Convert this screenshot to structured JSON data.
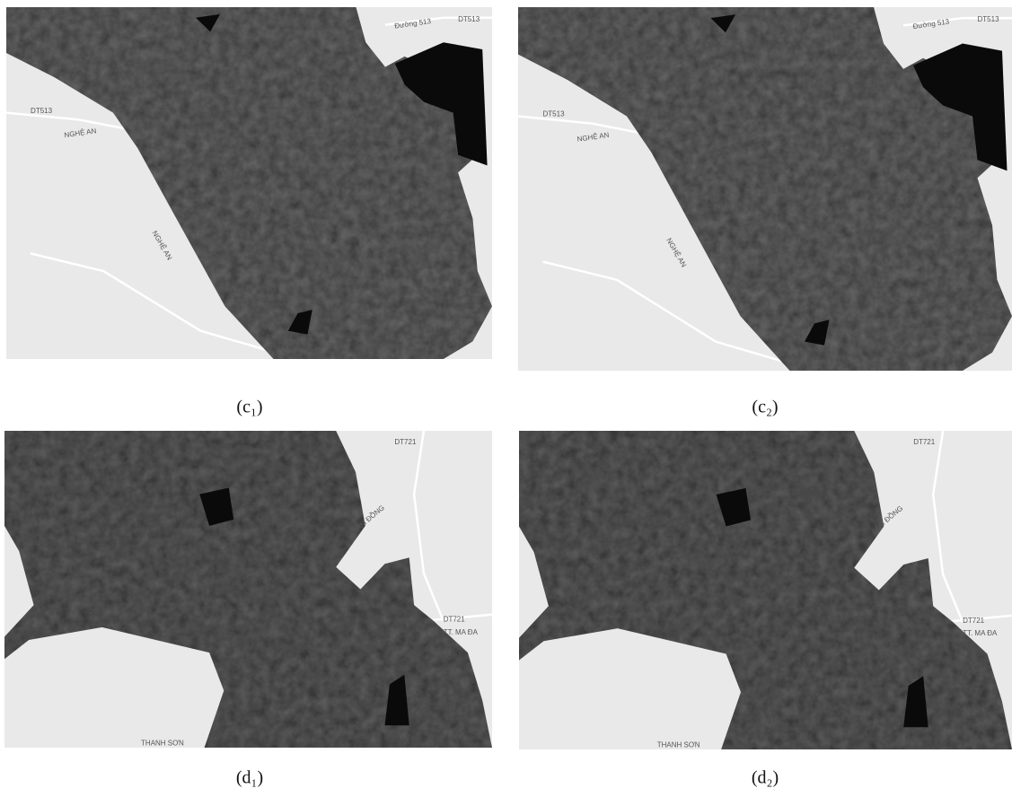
{
  "panels": [
    {
      "caption": "(c₁)",
      "labels": [
        "DT513",
        "NGHỆ AN",
        "NGHỆ AN",
        "Đường 513",
        "DT513"
      ]
    },
    {
      "caption": "(c₂)",
      "labels": [
        "DT513",
        "NGHỆ AN",
        "NGHỆ AN",
        "Đường 513",
        "DT513"
      ]
    },
    {
      "caption": "(d₁)",
      "labels": [
        "DT721",
        "LÂM ĐỒNG",
        "DT721",
        "TT. MA ĐA",
        "THANH SƠN"
      ]
    },
    {
      "caption": "(d₂)",
      "labels": [
        "DT721",
        "LÂM ĐỒNG",
        "DT721",
        "TT. MA ĐA",
        "THANH SƠN"
      ]
    }
  ]
}
